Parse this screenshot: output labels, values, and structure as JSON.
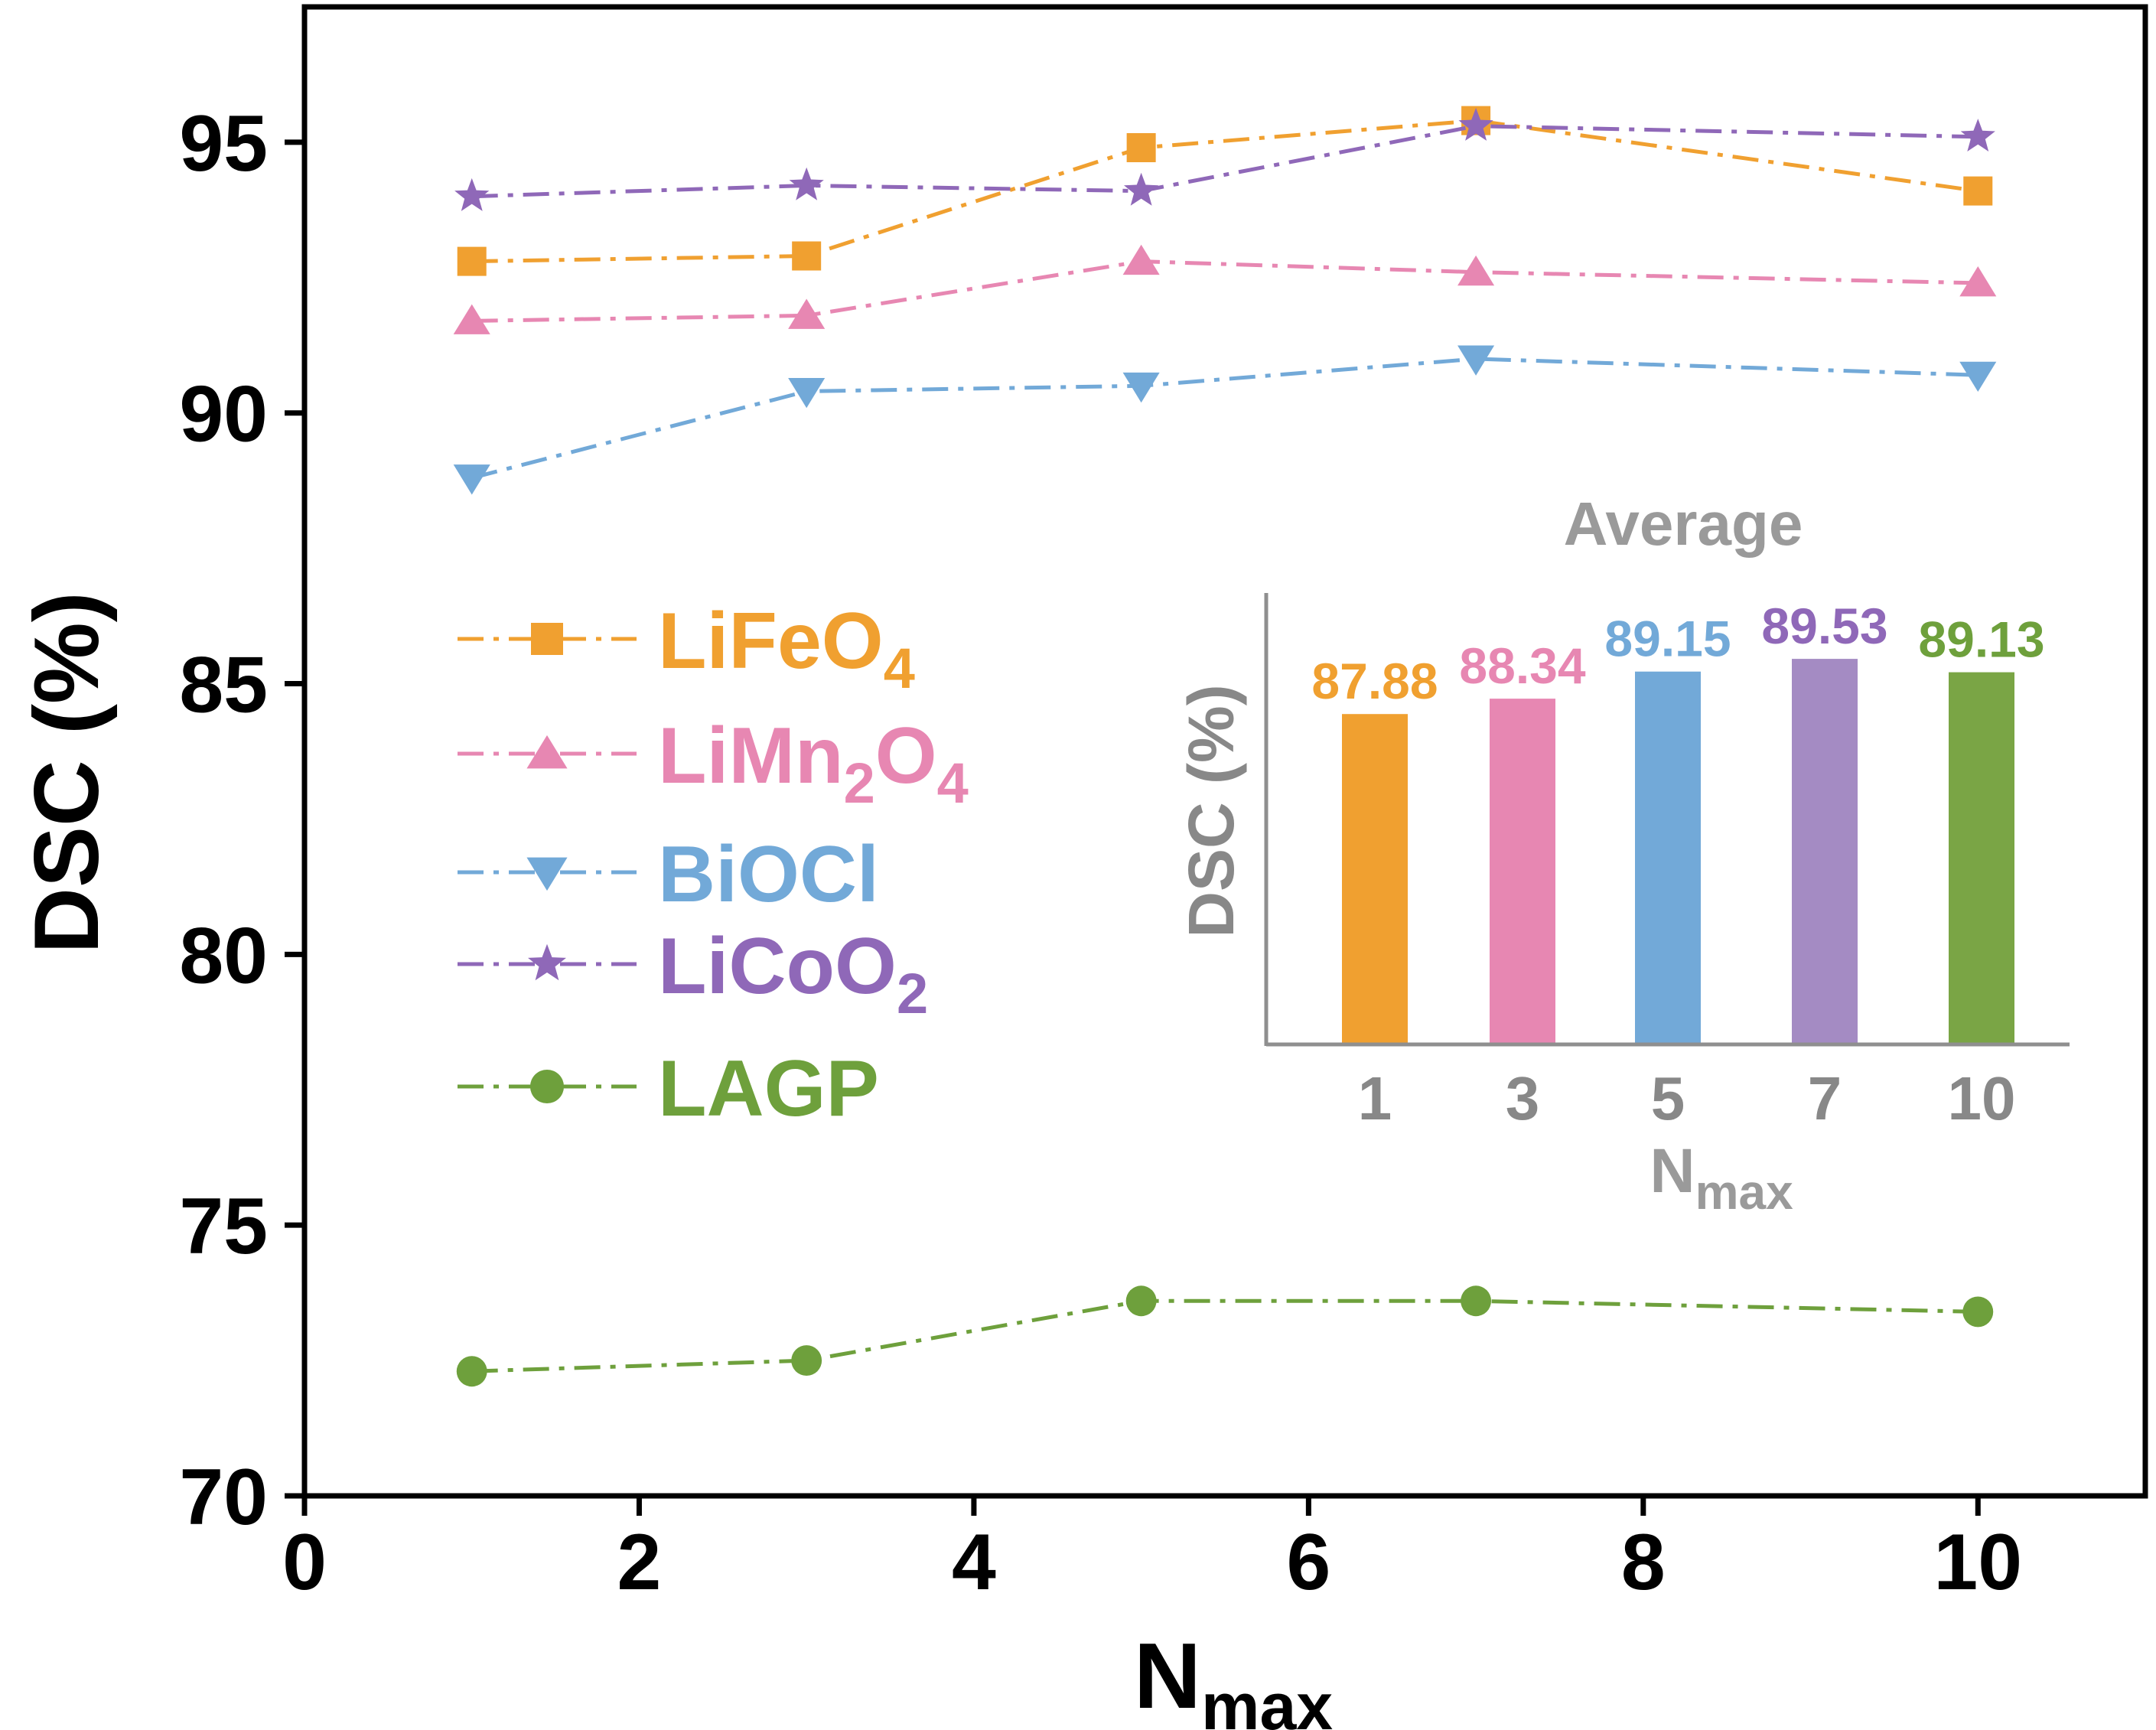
{
  "chart_data": [
    {
      "type": "line",
      "xlabel": "N",
      "xlabel_sub": "max",
      "ylabel": "DSC (%)",
      "xlim": [
        0,
        11
      ],
      "ylim": [
        70,
        97.5
      ],
      "xticks": [
        0,
        2,
        4,
        6,
        8,
        10
      ],
      "yticks": [
        70,
        75,
        80,
        85,
        90,
        95
      ],
      "x": [
        1,
        3,
        5,
        7,
        10
      ],
      "series": [
        {
          "name": "LiFeO",
          "sub": "4",
          "color": "#f0a030",
          "marker": "square",
          "values": [
            92.8,
            92.9,
            94.9,
            95.4,
            94.1
          ]
        },
        {
          "name": "LiMn",
          "sub": "2",
          "name2": "O",
          "sub2": "4",
          "color": "#e787b2",
          "marker": "triangle-up",
          "values": [
            91.7,
            91.8,
            92.8,
            92.6,
            92.4
          ]
        },
        {
          "name": "BiOCl",
          "color": "#72a9d8",
          "marker": "triangle-down",
          "values": [
            88.8,
            90.4,
            90.5,
            91.0,
            90.7
          ]
        },
        {
          "name": "LiCoO",
          "sub": "2",
          "color": "#8f68b8",
          "marker": "star",
          "values": [
            94.0,
            94.2,
            94.1,
            95.3,
            95.1
          ]
        },
        {
          "name": "LAGP",
          "color": "#6ea03c",
          "marker": "circle",
          "values": [
            72.3,
            72.5,
            73.6,
            73.6,
            73.4
          ]
        }
      ],
      "legend_position": "left-middle"
    },
    {
      "type": "bar",
      "title": "Average",
      "ylabel": "DSC (%)",
      "xlabel": "N",
      "xlabel_sub": "max",
      "categories": [
        "1",
        "3",
        "5",
        "7",
        "10"
      ],
      "values": [
        87.88,
        88.34,
        89.15,
        89.53,
        89.13
      ],
      "value_labels": [
        "87.88",
        "88.34",
        "89.15",
        "89.53",
        "89.13"
      ],
      "colors": [
        "#f0a030",
        "#e787b2",
        "#72a9d8",
        "#a48bc3",
        "#7aa545"
      ],
      "label_colors": [
        "#f0a030",
        "#e787b2",
        "#72a9d8",
        "#8f68b8",
        "#6ea03c"
      ],
      "ylim": [
        78,
        91.5
      ]
    }
  ]
}
